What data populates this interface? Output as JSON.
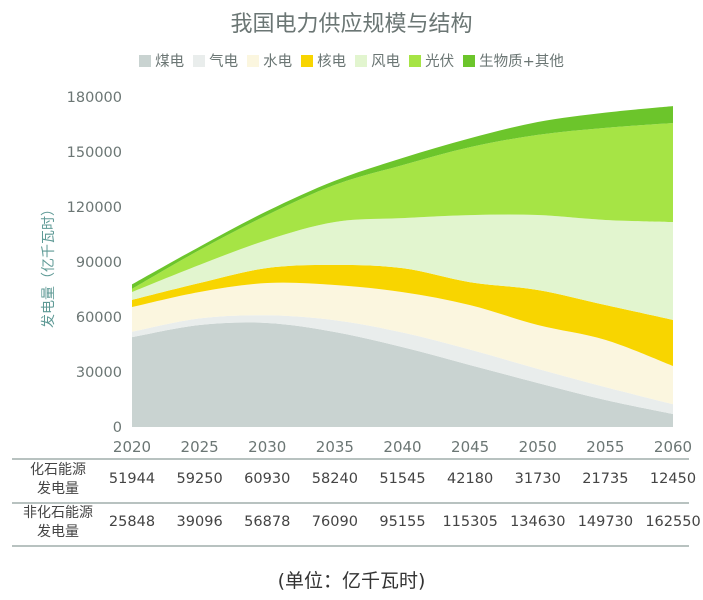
{
  "chart_data": {
    "type": "area",
    "stacked": true,
    "title": "我国电力供应规模与结构",
    "ylabel": "发电量（亿千瓦时）",
    "xlabel": "",
    "x": [
      "2020",
      "2025",
      "2030",
      "2035",
      "2040",
      "2045",
      "2050",
      "2055",
      "2060"
    ],
    "ylim": [
      0,
      180000
    ],
    "yticks": [
      "0",
      "30000",
      "60000",
      "90000",
      "120000",
      "150000",
      "180000"
    ],
    "legend_position": "top",
    "series": [
      {
        "name": "煤电",
        "color": "#c9d3d1",
        "values": [
          49000,
          55650,
          56730,
          51840,
          43545,
          33780,
          24030,
          14735,
          7100
        ]
      },
      {
        "name": "气电",
        "color": "#e9edec",
        "values": [
          2944,
          3600,
          4200,
          6400,
          8000,
          8400,
          7700,
          7000,
          5350
        ]
      },
      {
        "name": "水电",
        "color": "#fbf6df",
        "values": [
          13500,
          14400,
          17600,
          19200,
          22000,
          24300,
          23900,
          25800,
          20850
        ]
      },
      {
        "name": "核电",
        "color": "#f8d500",
        "values": [
          3900,
          4900,
          8200,
          11000,
          13100,
          12500,
          19100,
          19000,
          25100
        ]
      },
      {
        "name": "风电",
        "color": "#e2f5cf",
        "values": [
          4300,
          9900,
          15300,
          23400,
          27300,
          36600,
          40900,
          46400,
          53400
        ]
      },
      {
        "name": "光伏",
        "color": "#a6e445",
        "values": [
          1700,
          8100,
          13600,
          20200,
          28900,
          37100,
          43700,
          50200,
          54000
        ]
      },
      {
        "name": "生物质+其他",
        "color": "#6cc52b",
        "values": [
          2448,
          1796,
          2178,
          2290,
          3855,
          4805,
          7030,
          8330,
          9200
        ]
      }
    ]
  },
  "table": {
    "rows": [
      {
        "label1": "化石能源",
        "label2": "发电量",
        "values": [
          "51944",
          "59250",
          "60930",
          "58240",
          "51545",
          "42180",
          "31730",
          "21735",
          "12450"
        ]
      },
      {
        "label1": "非化石能源",
        "label2": "发电量",
        "values": [
          "25848",
          "39096",
          "56878",
          "76090",
          "95155",
          "115305",
          "134630",
          "149730",
          "162550"
        ]
      }
    ]
  },
  "unit": "(单位：亿千瓦时)"
}
